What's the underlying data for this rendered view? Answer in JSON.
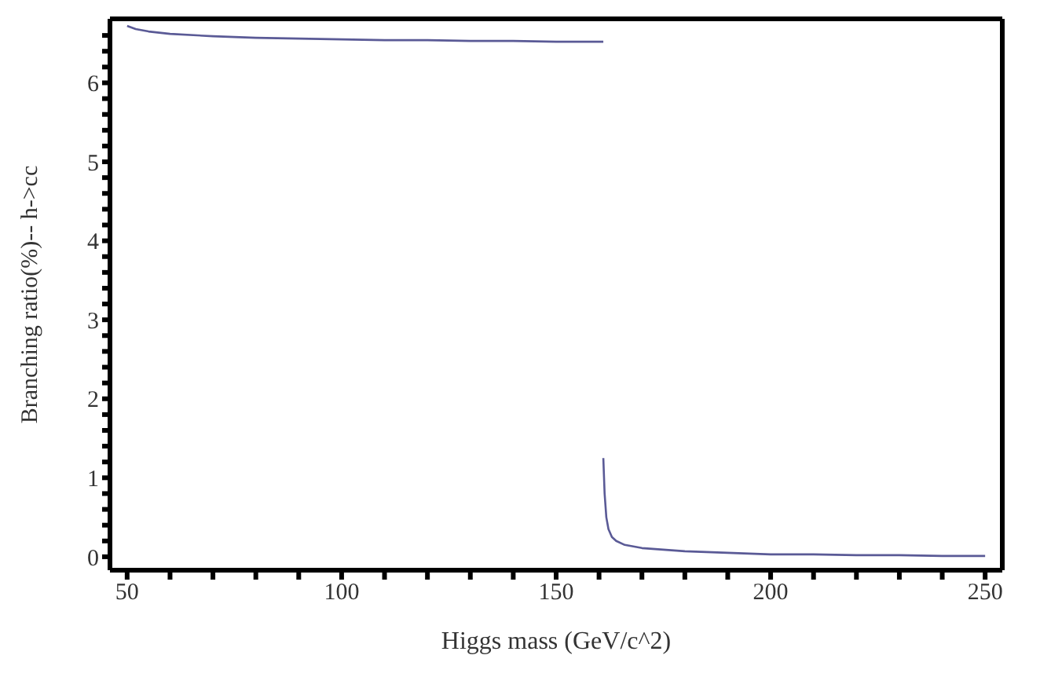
{
  "chart_data": {
    "type": "line",
    "xlabel": "Higgs mass (GeV/c^2)",
    "ylabel": "Branching ratio(%)-- h->cc",
    "xlim": [
      46,
      254
    ],
    "ylim": [
      -0.17,
      6.81
    ],
    "xticks": [
      50,
      {
        "value": 60,
        "label": null
      },
      {
        "value": 70,
        "label": null
      },
      {
        "value": 80,
        "label": null
      },
      {
        "value": 90,
        "label": null
      },
      100,
      {
        "value": 110,
        "label": null
      },
      {
        "value": 120,
        "label": null
      },
      {
        "value": 130,
        "label": null
      },
      {
        "value": 140,
        "label": null
      },
      150,
      {
        "value": 160,
        "label": null
      },
      {
        "value": 170,
        "label": null
      },
      {
        "value": 180,
        "label": null
      },
      {
        "value": 190,
        "label": null
      },
      200,
      {
        "value": 210,
        "label": null
      },
      {
        "value": 220,
        "label": null
      },
      {
        "value": 230,
        "label": null
      },
      {
        "value": 240,
        "label": null
      },
      250
    ],
    "yticks": [
      0,
      {
        "value": 0.2,
        "label": null
      },
      {
        "value": 0.4,
        "label": null
      },
      {
        "value": 0.6,
        "label": null
      },
      {
        "value": 0.8,
        "label": null
      },
      1,
      {
        "value": 1.2,
        "label": null
      },
      {
        "value": 1.4,
        "label": null
      },
      {
        "value": 1.6,
        "label": null
      },
      {
        "value": 1.8,
        "label": null
      },
      2,
      {
        "value": 2.2,
        "label": null
      },
      {
        "value": 2.4,
        "label": null
      },
      {
        "value": 2.6,
        "label": null
      },
      {
        "value": 2.8,
        "label": null
      },
      3,
      {
        "value": 3.2,
        "label": null
      },
      {
        "value": 3.4,
        "label": null
      },
      {
        "value": 3.6,
        "label": null
      },
      {
        "value": 3.8,
        "label": null
      },
      4,
      {
        "value": 4.2,
        "label": null
      },
      {
        "value": 4.4,
        "label": null
      },
      {
        "value": 4.6,
        "label": null
      },
      {
        "value": 4.8,
        "label": null
      },
      5,
      {
        "value": 5.2,
        "label": null
      },
      {
        "value": 5.4,
        "label": null
      },
      {
        "value": 5.6,
        "label": null
      },
      {
        "value": 5.8,
        "label": null
      },
      6,
      {
        "value": 6.2,
        "label": null
      },
      {
        "value": 6.4,
        "label": null
      },
      {
        "value": 6.6,
        "label": null
      }
    ],
    "marker": "none",
    "line_style": "solid",
    "series": [
      {
        "color": "#5a5a96",
        "x": [
          50,
          52,
          55,
          60,
          70,
          80,
          90,
          100,
          110,
          120,
          130,
          140,
          150,
          161
        ],
        "values": [
          6.72,
          6.68,
          6.65,
          6.62,
          6.59,
          6.57,
          6.56,
          6.55,
          6.54,
          6.54,
          6.53,
          6.53,
          6.52,
          6.52
        ]
      },
      {
        "color": "#5a5a96",
        "x": [
          161,
          161.3,
          161.7,
          162.2,
          163,
          164,
          166,
          170,
          175,
          180,
          190,
          200,
          210,
          220,
          230,
          240,
          250
        ],
        "values": [
          1.25,
          0.8,
          0.5,
          0.35,
          0.25,
          0.2,
          0.15,
          0.11,
          0.09,
          0.07,
          0.05,
          0.03,
          0.03,
          0.02,
          0.02,
          0.01,
          0.01
        ]
      }
    ]
  }
}
